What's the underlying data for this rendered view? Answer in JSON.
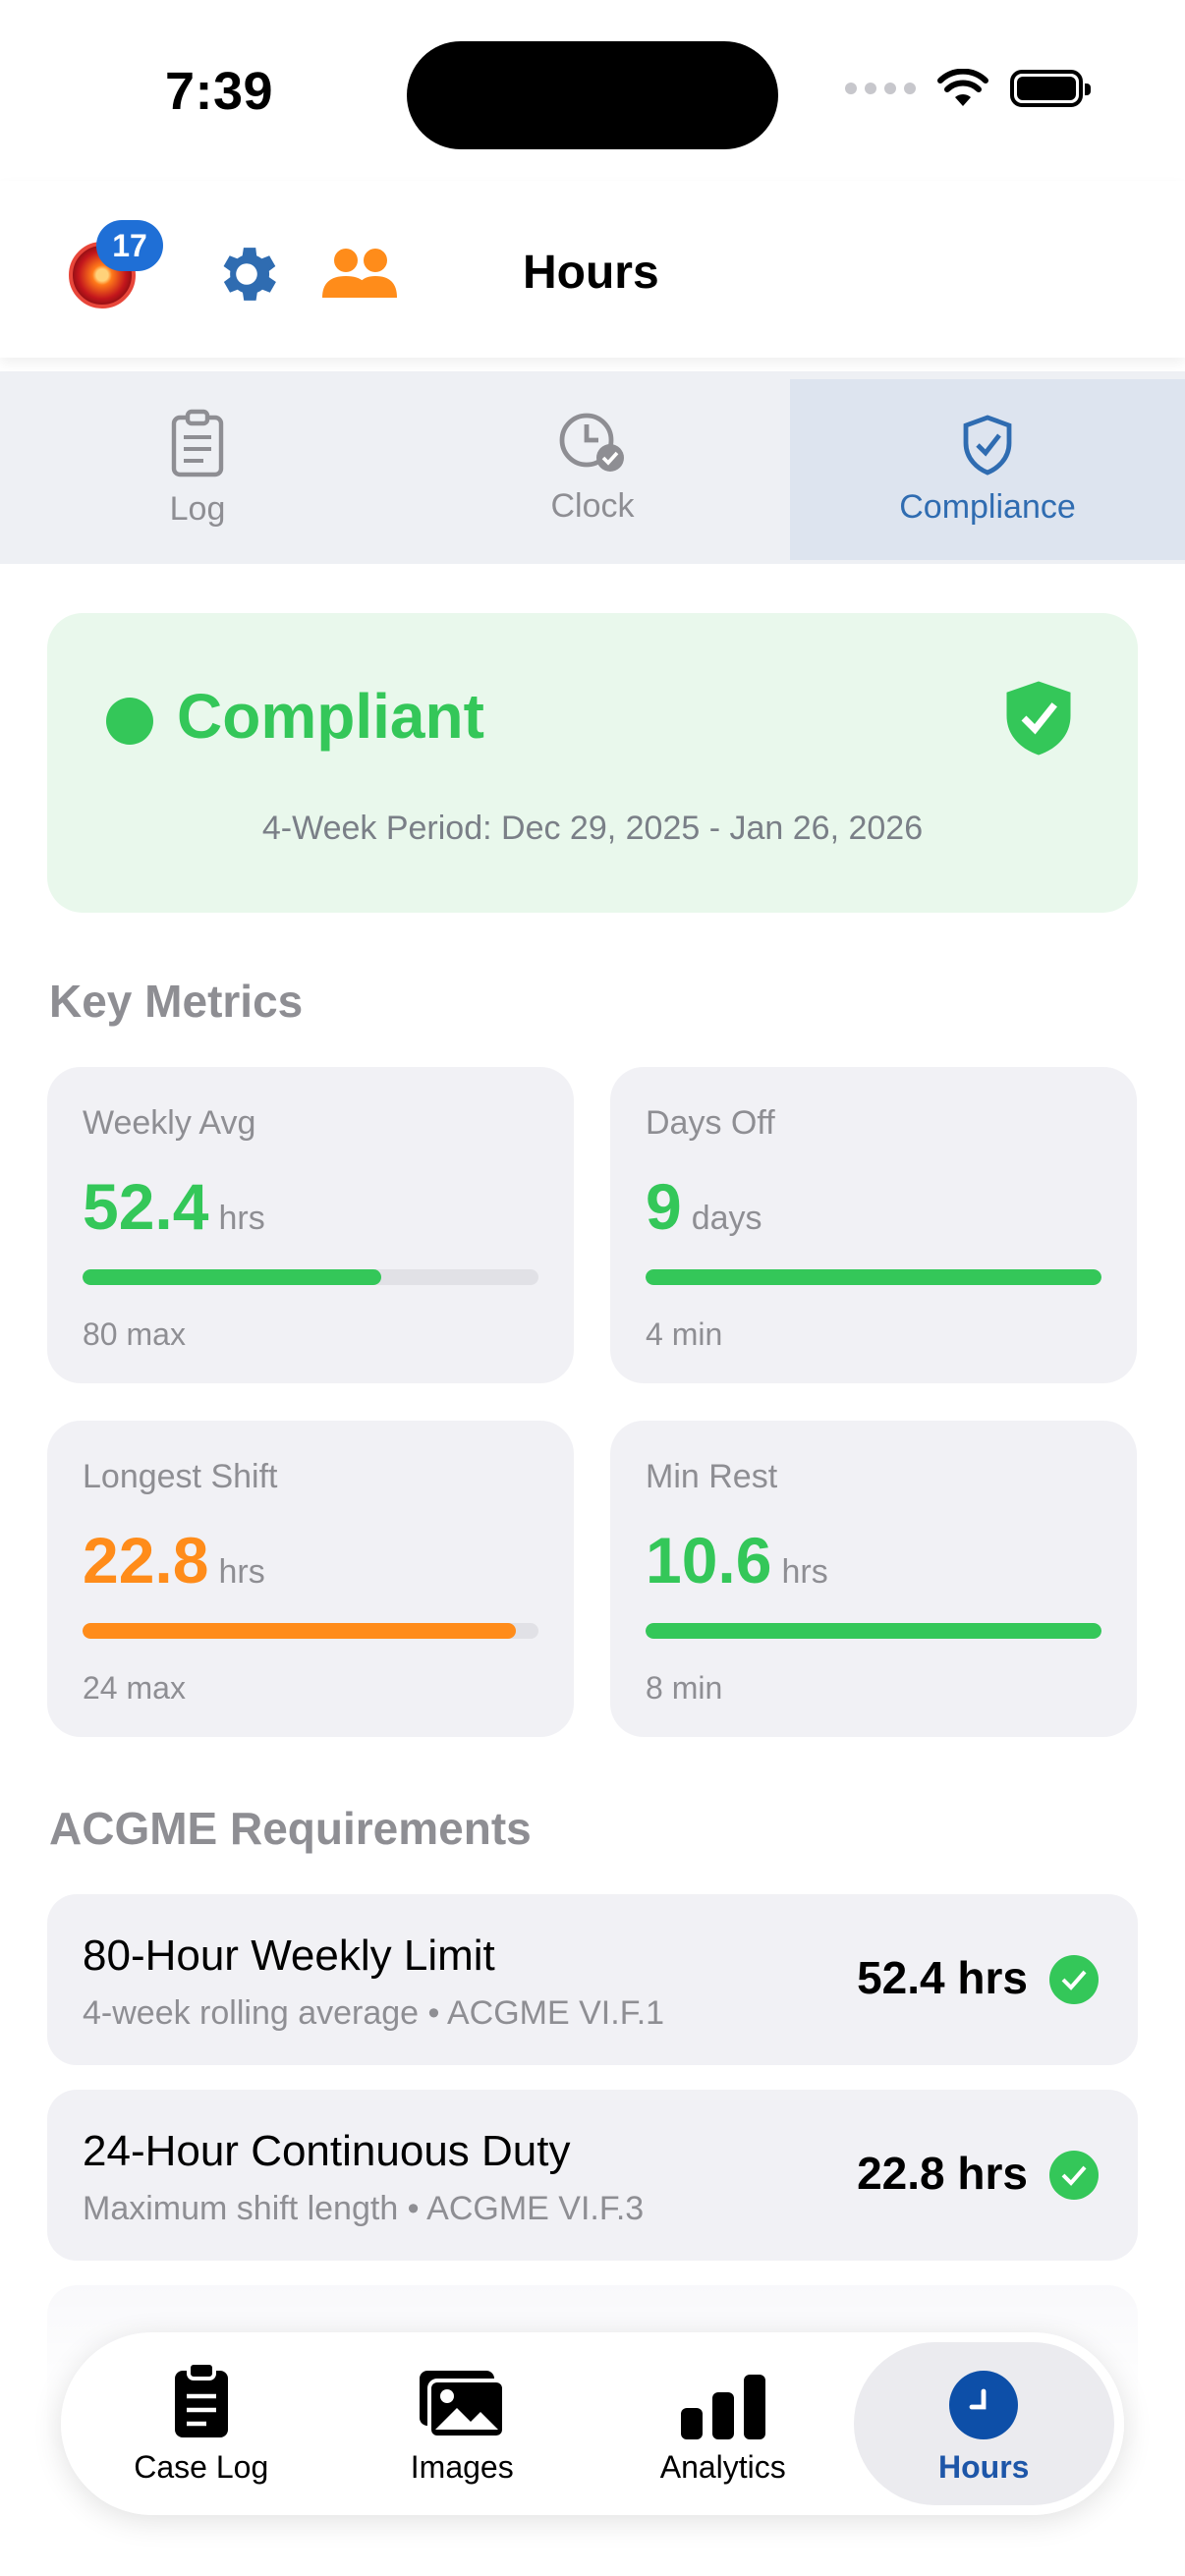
{
  "status_bar": {
    "time": "7:39"
  },
  "header": {
    "title": "Hours",
    "notification_count": "17"
  },
  "tabs": [
    {
      "label": "Log",
      "icon": "clipboard-icon",
      "active": false
    },
    {
      "label": "Clock",
      "icon": "clock-check-icon",
      "active": false
    },
    {
      "label": "Compliance",
      "icon": "shield-check-icon",
      "active": true
    }
  ],
  "compliance": {
    "status": "Compliant",
    "period": "4-Week Period: Dec 29, 2025 - Jan 26, 2026",
    "color": "#34c759"
  },
  "key_metrics": {
    "title": "Key Metrics",
    "items": [
      {
        "label": "Weekly Avg",
        "value": "52.4",
        "unit": "hrs",
        "sub": "80 max",
        "progress": 0.655,
        "color": "#34c759"
      },
      {
        "label": "Days Off",
        "value": "9",
        "unit": "days",
        "sub": "4 min",
        "progress": 1.0,
        "color": "#34c759"
      },
      {
        "label": "Longest Shift",
        "value": "22.8",
        "unit": "hrs",
        "sub": "24 max",
        "progress": 0.95,
        "color": "#ff8c1a"
      },
      {
        "label": "Min Rest",
        "value": "10.6",
        "unit": "hrs",
        "sub": "8 min",
        "progress": 1.0,
        "color": "#34c759"
      }
    ]
  },
  "requirements": {
    "title": "ACGME Requirements",
    "items": [
      {
        "title": "80-Hour Weekly Limit",
        "subtitle": "4-week rolling average",
        "reference": "ACGME VI.F.1",
        "value": "52.4 hrs",
        "status": "pass"
      },
      {
        "title": "24-Hour Continuous Duty",
        "subtitle": "Maximum shift length",
        "reference": "ACGME VI.F.3",
        "value": "22.8 hrs",
        "status": "pass"
      }
    ]
  },
  "bottom_nav": [
    {
      "label": "Case Log",
      "icon": "clipboard-icon",
      "active": false
    },
    {
      "label": "Images",
      "icon": "photos-icon",
      "active": false
    },
    {
      "label": "Analytics",
      "icon": "bar-chart-icon",
      "active": false
    },
    {
      "label": "Hours",
      "icon": "clock-icon",
      "active": true
    }
  ]
}
